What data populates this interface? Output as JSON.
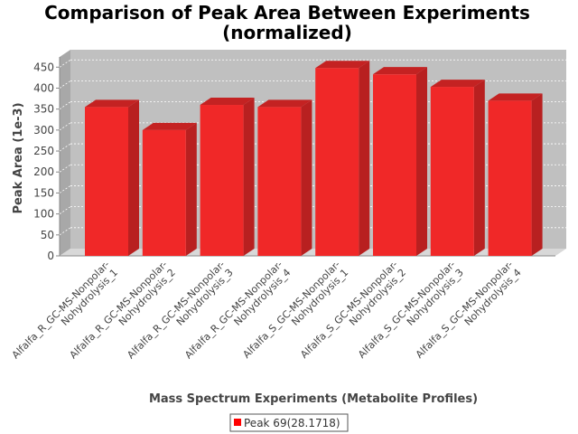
{
  "chart_data": {
    "type": "bar",
    "title_line1": "Comparison of Peak Area Between Experiments",
    "title_line2": "(normalized)",
    "xlabel": "Mass Spectrum Experiments (Metabolite Profiles)",
    "ylabel": "Peak Area (1e-3)",
    "ylim": [
      0,
      470
    ],
    "yticks": [
      0,
      50,
      100,
      150,
      200,
      250,
      300,
      350,
      400,
      450
    ],
    "grid": true,
    "categories": [
      [
        "Alfalfa_R_GC-MS-Nonpolar-",
        "Nohydrolysis_1"
      ],
      [
        "Alfalfa_R_GC-MS-Nonpolar-",
        "Nohydrolysis_2"
      ],
      [
        "Alfalfa_R_GC-MS-Nonpolar-",
        "Nohydrolysis_3"
      ],
      [
        "Alfalfa_R_GC-MS-Nonpolar-",
        "Nohydrolysis_4"
      ],
      [
        "Alfalfa_S_GC-MS-Nonpolar-",
        "Nohydrolysis_1"
      ],
      [
        "Alfalfa_S_GC-MS-Nonpolar-",
        "Nohydrolysis_2"
      ],
      [
        "Alfalfa_S_GC-MS-Nonpolar-",
        "Nohydrolysis_3"
      ],
      [
        "Alfalfa_S_GC-MS-Nonpolar-",
        "Nohydrolysis_4"
      ]
    ],
    "series": [
      {
        "name": "Peak 69(28.1718)",
        "color": "#f02828",
        "values": [
          355,
          300,
          360,
          355,
          448,
          433,
          403,
          370
        ]
      }
    ],
    "legend_position": "bottom-center"
  }
}
